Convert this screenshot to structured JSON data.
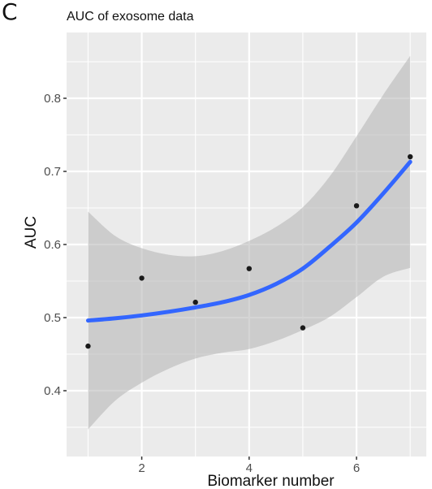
{
  "panel_label": "C",
  "chart_data": {
    "type": "scatter",
    "title": "AUC of exosome data",
    "xlabel": "Biomarker number",
    "ylabel": "AUC",
    "xlim": [
      0.6,
      7.3
    ],
    "ylim": [
      0.31,
      0.89
    ],
    "x_ticks": [
      2,
      4,
      6
    ],
    "y_ticks": [
      0.4,
      0.5,
      0.6,
      0.7,
      0.8
    ],
    "points": [
      {
        "x": 1,
        "y": 0.461
      },
      {
        "x": 2,
        "y": 0.554
      },
      {
        "x": 3,
        "y": 0.521
      },
      {
        "x": 4,
        "y": 0.567
      },
      {
        "x": 5,
        "y": 0.486
      },
      {
        "x": 6,
        "y": 0.653
      },
      {
        "x": 7,
        "y": 0.72
      }
    ],
    "smooth": [
      {
        "x": 1.0,
        "y": 0.496
      },
      {
        "x": 1.5,
        "y": 0.499
      },
      {
        "x": 2.0,
        "y": 0.503
      },
      {
        "x": 2.5,
        "y": 0.508
      },
      {
        "x": 3.0,
        "y": 0.514
      },
      {
        "x": 3.5,
        "y": 0.521
      },
      {
        "x": 4.0,
        "y": 0.531
      },
      {
        "x": 4.5,
        "y": 0.546
      },
      {
        "x": 5.0,
        "y": 0.567
      },
      {
        "x": 5.5,
        "y": 0.597
      },
      {
        "x": 6.0,
        "y": 0.63
      },
      {
        "x": 6.5,
        "y": 0.67
      },
      {
        "x": 7.0,
        "y": 0.713
      }
    ],
    "band_upper": [
      {
        "x": 1.0,
        "y": 0.645
      },
      {
        "x": 1.5,
        "y": 0.612
      },
      {
        "x": 2.0,
        "y": 0.595
      },
      {
        "x": 2.5,
        "y": 0.586
      },
      {
        "x": 3.0,
        "y": 0.584
      },
      {
        "x": 3.5,
        "y": 0.591
      },
      {
        "x": 4.0,
        "y": 0.605
      },
      {
        "x": 4.5,
        "y": 0.624
      },
      {
        "x": 5.0,
        "y": 0.651
      },
      {
        "x": 5.5,
        "y": 0.693
      },
      {
        "x": 6.0,
        "y": 0.748
      },
      {
        "x": 6.5,
        "y": 0.805
      },
      {
        "x": 7.0,
        "y": 0.858
      }
    ],
    "band_lower": [
      {
        "x": 1.0,
        "y": 0.347
      },
      {
        "x": 1.5,
        "y": 0.386
      },
      {
        "x": 2.0,
        "y": 0.411
      },
      {
        "x": 2.5,
        "y": 0.43
      },
      {
        "x": 3.0,
        "y": 0.444
      },
      {
        "x": 3.5,
        "y": 0.452
      },
      {
        "x": 4.0,
        "y": 0.457
      },
      {
        "x": 4.5,
        "y": 0.468
      },
      {
        "x": 5.0,
        "y": 0.483
      },
      {
        "x": 5.5,
        "y": 0.501
      },
      {
        "x": 6.0,
        "y": 0.528
      },
      {
        "x": 6.5,
        "y": 0.556
      },
      {
        "x": 7.0,
        "y": 0.568
      }
    ],
    "grid": true,
    "legend": "none",
    "colors": {
      "panel_bg": "#ebebeb",
      "grid": "#ffffff",
      "point": "#1a1a1a",
      "line": "#3366ff",
      "band": "#b3b3b3"
    }
  }
}
